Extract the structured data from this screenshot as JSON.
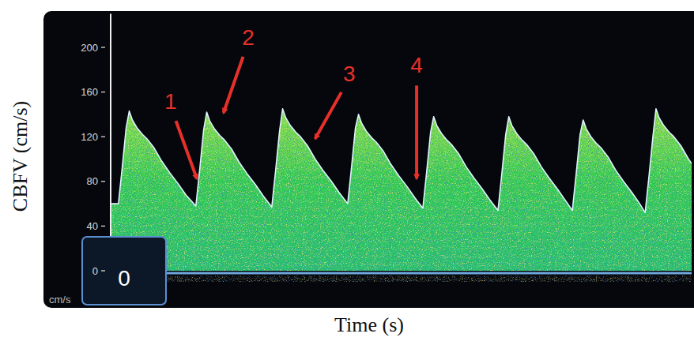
{
  "chart_data": {
    "type": "area",
    "x_label": "Time (s)",
    "y_label": "CBFV (cm/s)",
    "y_unit": "cm/s",
    "readout": "0",
    "color": "#33cc55",
    "grid": false,
    "tick_labels": "y",
    "xlim": [
      0,
      7.5
    ],
    "ylim": [
      -25,
      230
    ],
    "yticks": [
      0,
      40,
      80,
      120,
      160,
      200
    ],
    "x": [
      0,
      0.1,
      0.15,
      0.2,
      0.24,
      0.28,
      0.34,
      0.41,
      0.47,
      0.56,
      0.66,
      0.76,
      0.87,
      0.97,
      1.1,
      1.15,
      1.2,
      1.24,
      1.28,
      1.34,
      1.41,
      1.47,
      1.56,
      1.66,
      1.76,
      1.87,
      1.97,
      2.08,
      2.13,
      2.18,
      2.22,
      2.26,
      2.32,
      2.39,
      2.45,
      2.54,
      2.64,
      2.74,
      2.85,
      2.95,
      3.06,
      3.11,
      3.16,
      3.2,
      3.24,
      3.3,
      3.37,
      3.43,
      3.52,
      3.62,
      3.72,
      3.83,
      3.93,
      4.03,
      4.08,
      4.13,
      4.17,
      4.21,
      4.27,
      4.34,
      4.4,
      4.49,
      4.59,
      4.69,
      4.8,
      4.9,
      5.0,
      5.05,
      5.1,
      5.14,
      5.18,
      5.24,
      5.31,
      5.37,
      5.46,
      5.56,
      5.66,
      5.77,
      5.87,
      5.96,
      6.01,
      6.06,
      6.1,
      6.14,
      6.2,
      6.27,
      6.33,
      6.42,
      6.52,
      6.62,
      6.73,
      6.83,
      6.9,
      6.95,
      7.0,
      7.04,
      7.08,
      7.14,
      7.21,
      7.27,
      7.36,
      7.46,
      7.5
    ],
    "values": [
      60,
      60,
      93,
      128,
      143,
      135,
      128,
      122,
      118,
      110,
      98,
      88,
      78,
      68,
      58,
      91,
      126,
      142,
      134,
      127,
      121,
      117,
      109,
      97,
      87,
      77,
      67,
      57,
      90,
      125,
      145,
      137,
      130,
      124,
      120,
      112,
      100,
      90,
      80,
      70,
      60,
      93,
      128,
      140,
      132,
      125,
      119,
      115,
      107,
      95,
      85,
      75,
      65,
      56,
      89,
      124,
      138,
      130,
      123,
      117,
      113,
      105,
      93,
      83,
      73,
      63,
      54,
      87,
      122,
      138,
      130,
      123,
      117,
      113,
      105,
      93,
      83,
      73,
      63,
      54,
      87,
      122,
      135,
      127,
      120,
      114,
      110,
      102,
      90,
      80,
      70,
      60,
      52,
      85,
      120,
      145,
      137,
      130,
      124,
      120,
      112,
      100,
      96
    ],
    "annotations": [
      {
        "text": "1",
        "x": 1.12,
        "y": 81
      },
      {
        "text": "2",
        "x": 1.45,
        "y": 140
      },
      {
        "text": "3",
        "x": 2.63,
        "y": 117
      },
      {
        "text": "4",
        "x": 3.95,
        "y": 81
      }
    ]
  }
}
